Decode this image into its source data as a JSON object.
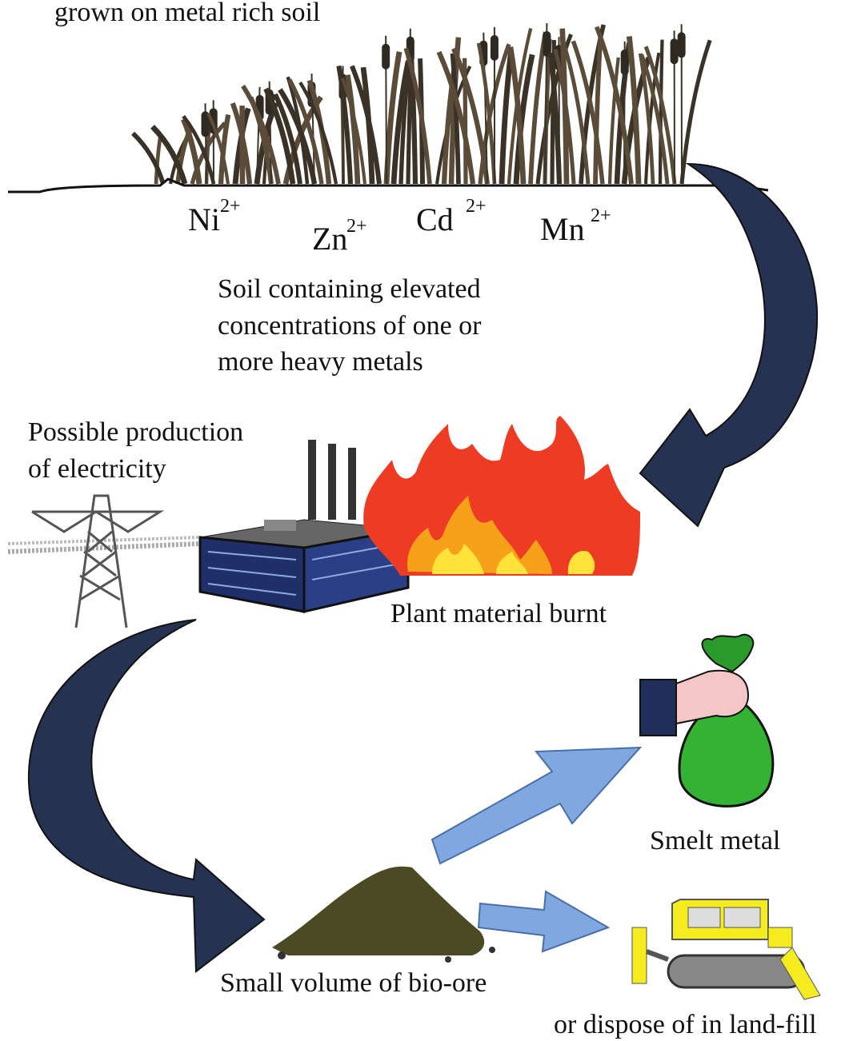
{
  "top_caption": "grown on metal rich soil",
  "ions": [
    {
      "symbol": "Ni",
      "charge": "2+"
    },
    {
      "symbol": "Zn",
      "charge": "2+"
    },
    {
      "symbol": "Cd",
      "charge": "2+"
    },
    {
      "symbol": "Mn",
      "charge": "2+"
    }
  ],
  "soil_caption": [
    "Soil containing elevated",
    "concentrations of one or",
    "more heavy metals"
  ],
  "electricity_caption": [
    "Possible production",
    "of electricity"
  ],
  "burn_caption": "Plant material burnt",
  "smelt_caption": "Smelt metal",
  "bio_ore_caption": "Small volume of bio-ore",
  "landfill_caption": "or dispose of in land-fill"
}
